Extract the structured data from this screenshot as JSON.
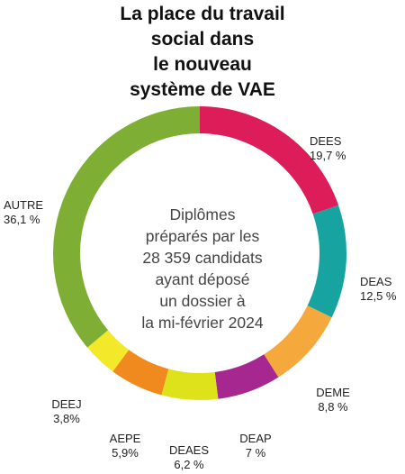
{
  "title_lines": [
    "La place du travail",
    "social dans",
    "le nouveau",
    "système de VAE"
  ],
  "center_lines": [
    "Diplômes",
    "préparés par les",
    "28 359 candidats",
    "ayant déposé",
    "un dossier à",
    "la mi-février 2024"
  ],
  "chart_data": {
    "type": "pie",
    "donut": true,
    "title": "La place du travail social dans le nouveau système de VAE",
    "slices": [
      {
        "label": "DEES",
        "value": 19.7,
        "value_label": "19,7 %",
        "color": "#dc1d5a"
      },
      {
        "label": "DEAS",
        "value": 12.5,
        "value_label": "12,5 %",
        "color": "#17a3a0"
      },
      {
        "label": "DEME",
        "value": 8.8,
        "value_label": "8,8 %",
        "color": "#f5a93d"
      },
      {
        "label": "DEAP",
        "value": 7.0,
        "value_label": "7 %",
        "color": "#a5278f"
      },
      {
        "label": "DEAES",
        "value": 6.2,
        "value_label": "6,2 %",
        "color": "#dde21a"
      },
      {
        "label": "AEPE",
        "value": 5.9,
        "value_label": "5,9%",
        "color": "#f08a1e"
      },
      {
        "label": "DEEJ",
        "value": 3.8,
        "value_label": "3,8%",
        "color": "#f4e82a"
      },
      {
        "label": "AUTRE",
        "value": 36.1,
        "value_label": "36,1 %",
        "color": "#7fae35"
      }
    ]
  }
}
